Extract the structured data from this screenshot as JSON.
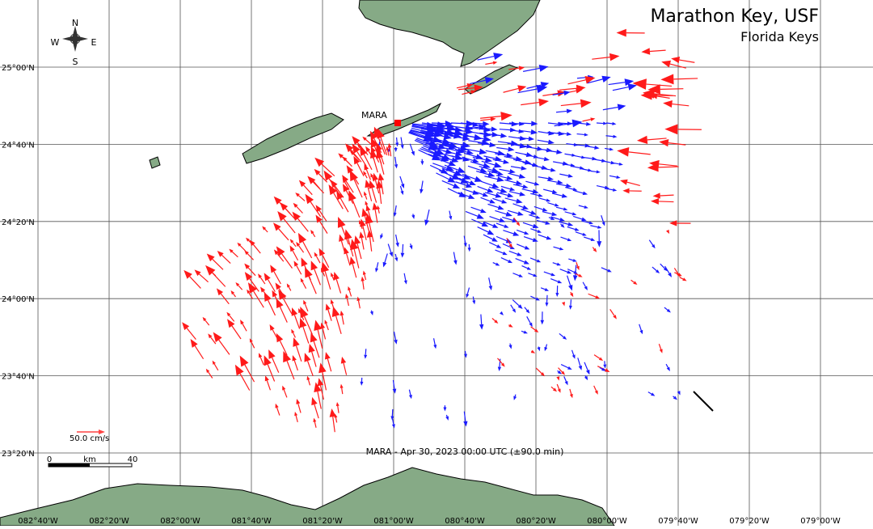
{
  "map": {
    "title": "Marathon Key, USF",
    "subtitle": "Florida Keys",
    "station": "MARA",
    "caption": "MARA - Apr 30, 2023 00:00 UTC (±90.0 min)",
    "scale_label": "50.0 cm/s",
    "scale_bar": [
      "0",
      "km",
      "40"
    ],
    "compass": {
      "n": "N",
      "e": "E",
      "s": "S",
      "w": "W"
    },
    "lat_labels": [
      "25°00'N",
      "24°40'N",
      "24°20'N",
      "24°00'N",
      "23°40'N",
      "23°20'N"
    ],
    "lon_labels": [
      "082°40'W",
      "082°20'W",
      "082°00'W",
      "081°40'W",
      "081°20'W",
      "081°00'W",
      "080°40'W",
      "080°20'W",
      "080°00'W",
      "079°40'W",
      "079°20'W",
      "079°00'W"
    ]
  }
}
